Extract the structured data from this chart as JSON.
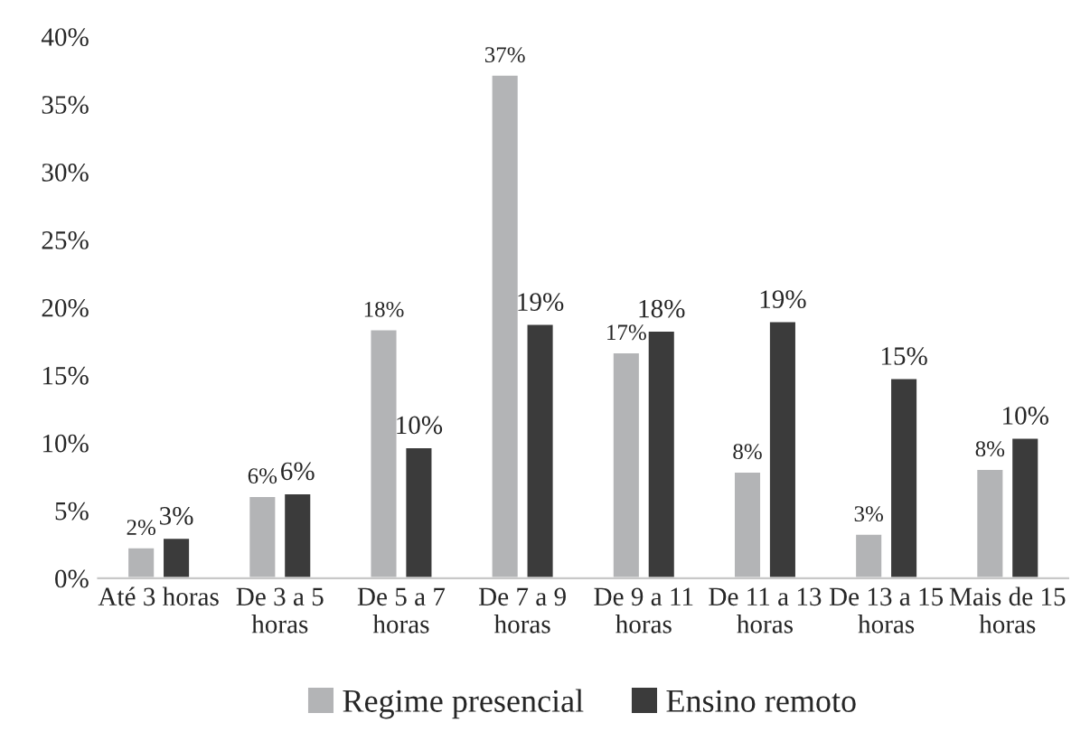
{
  "chart_data": {
    "type": "bar",
    "categories": [
      "Até 3 horas",
      "De 3 a 5\nhoras",
      "De 5 a 7\nhoras",
      "De 7 a 9\nhoras",
      "De 9 a 11\nhoras",
      "De 11 a 13\nhoras",
      "De 13 a 15\nhoras",
      "Mais de 15\nhoras"
    ],
    "series": [
      {
        "name": "Regime presencial",
        "color": "#b3b4b6",
        "values": [
          2.3,
          6.1,
          18.4,
          37.2,
          16.7,
          7.9,
          3.3,
          8.1
        ],
        "value_labels": [
          "2%",
          "6%",
          "18%",
          "37%",
          "17%",
          "8%",
          "3%",
          "8%"
        ]
      },
      {
        "name": "Ensino remoto",
        "color": "#3b3b3b",
        "values": [
          3.0,
          6.3,
          9.7,
          18.8,
          18.3,
          19.0,
          14.8,
          10.4
        ],
        "value_labels": [
          "3%",
          "6%",
          "10%",
          "19%",
          "18%",
          "19%",
          "15%",
          "10%"
        ]
      }
    ],
    "ylim": [
      0,
      40
    ],
    "yticks": [
      {
        "value": 0,
        "label": "0%"
      },
      {
        "value": 5,
        "label": "5%"
      },
      {
        "value": 10,
        "label": "10%"
      },
      {
        "value": 15,
        "label": "15%"
      },
      {
        "value": 20,
        "label": "20%"
      },
      {
        "value": 25,
        "label": "25%"
      },
      {
        "value": 30,
        "label": "30%"
      },
      {
        "value": 35,
        "label": "35%"
      },
      {
        "value": 40,
        "label": "40%"
      }
    ],
    "grid": false,
    "legend": "bottom"
  }
}
